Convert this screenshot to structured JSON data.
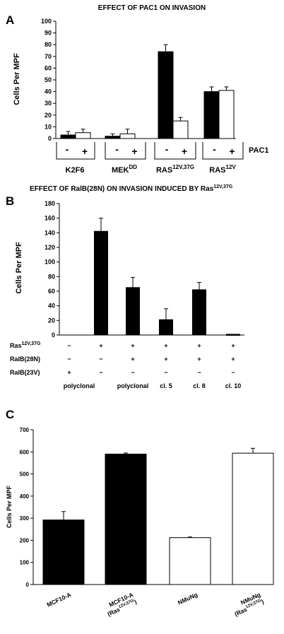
{
  "chart_data": [
    {
      "panel": "A",
      "type": "bar",
      "title": "EFFECT OF PAC1 ON INVASION",
      "ylabel": "Cells Per MPF",
      "ylim": [
        0,
        100
      ],
      "yticks": [
        0,
        10,
        20,
        30,
        40,
        50,
        60,
        70,
        80,
        90,
        100
      ],
      "categories": [
        "K2F6",
        "MEK",
        "RAS",
        "RAS"
      ],
      "category_superscripts": [
        "",
        "DD",
        "12V,37G",
        "12V"
      ],
      "row_label": "PAC1",
      "pac_signs": [
        "-",
        "+"
      ],
      "series": [
        {
          "name": "-",
          "color": "#000000",
          "values": [
            3,
            2,
            74,
            40
          ],
          "errors": [
            3,
            2,
            6,
            4
          ]
        },
        {
          "name": "+",
          "color": "#ffffff",
          "values": [
            5,
            4,
            15,
            41
          ],
          "errors": [
            3,
            4,
            3,
            3
          ]
        }
      ]
    },
    {
      "panel": "B",
      "type": "bar",
      "title": "EFFECT OF RalB(28N) ON INVASION INDUCED BY Ras",
      "title_superscript": "12V,37G",
      "ylabel": "Cells Per MPF",
      "ylim": [
        0,
        180
      ],
      "yticks": [
        0,
        20,
        40,
        60,
        80,
        100,
        120,
        140,
        160,
        180
      ],
      "values": [
        0,
        142,
        65,
        21,
        62,
        1
      ],
      "errors": [
        0,
        18,
        14,
        15,
        10,
        0
      ],
      "rows": [
        {
          "label": "Ras",
          "superscript": "12V,37G",
          "signs": [
            "−",
            "+",
            "+",
            "+",
            "+",
            "+"
          ]
        },
        {
          "label": "RalB(28N)",
          "superscript": "",
          "signs": [
            "−",
            "−",
            "+",
            "+",
            "+",
            "+"
          ]
        },
        {
          "label": "RalB(23V)",
          "superscript": "",
          "signs": [
            "+",
            "−",
            "−",
            "−",
            "−",
            "−"
          ]
        }
      ],
      "footer": [
        "polyclonal",
        "",
        "polyclonal",
        "cl. 5",
        "cl. 8",
        "cl. 10"
      ]
    },
    {
      "panel": "C",
      "type": "bar",
      "ylabel": "Cells Per MPF",
      "ylim": [
        0,
        700
      ],
      "yticks": [
        0,
        100,
        200,
        300,
        400,
        500,
        600,
        700
      ],
      "categories": [
        {
          "line1": "MCF10-A",
          "line2": ""
        },
        {
          "line1": "MCF10-A",
          "line2": "(Ras",
          "line2_sup": "12V,37G",
          "line2_end": ")"
        },
        {
          "line1": "NMuNg",
          "line2": ""
        },
        {
          "line1": "NMuNg",
          "line2": "(Ras",
          "line2_sup": "12V,37G",
          "line2_end": ")"
        }
      ],
      "values": [
        292,
        590,
        212,
        594
      ],
      "errors": [
        38,
        5,
        3,
        22
      ],
      "colors": [
        "#000000",
        "#000000",
        "#ffffff",
        "#ffffff"
      ]
    }
  ]
}
